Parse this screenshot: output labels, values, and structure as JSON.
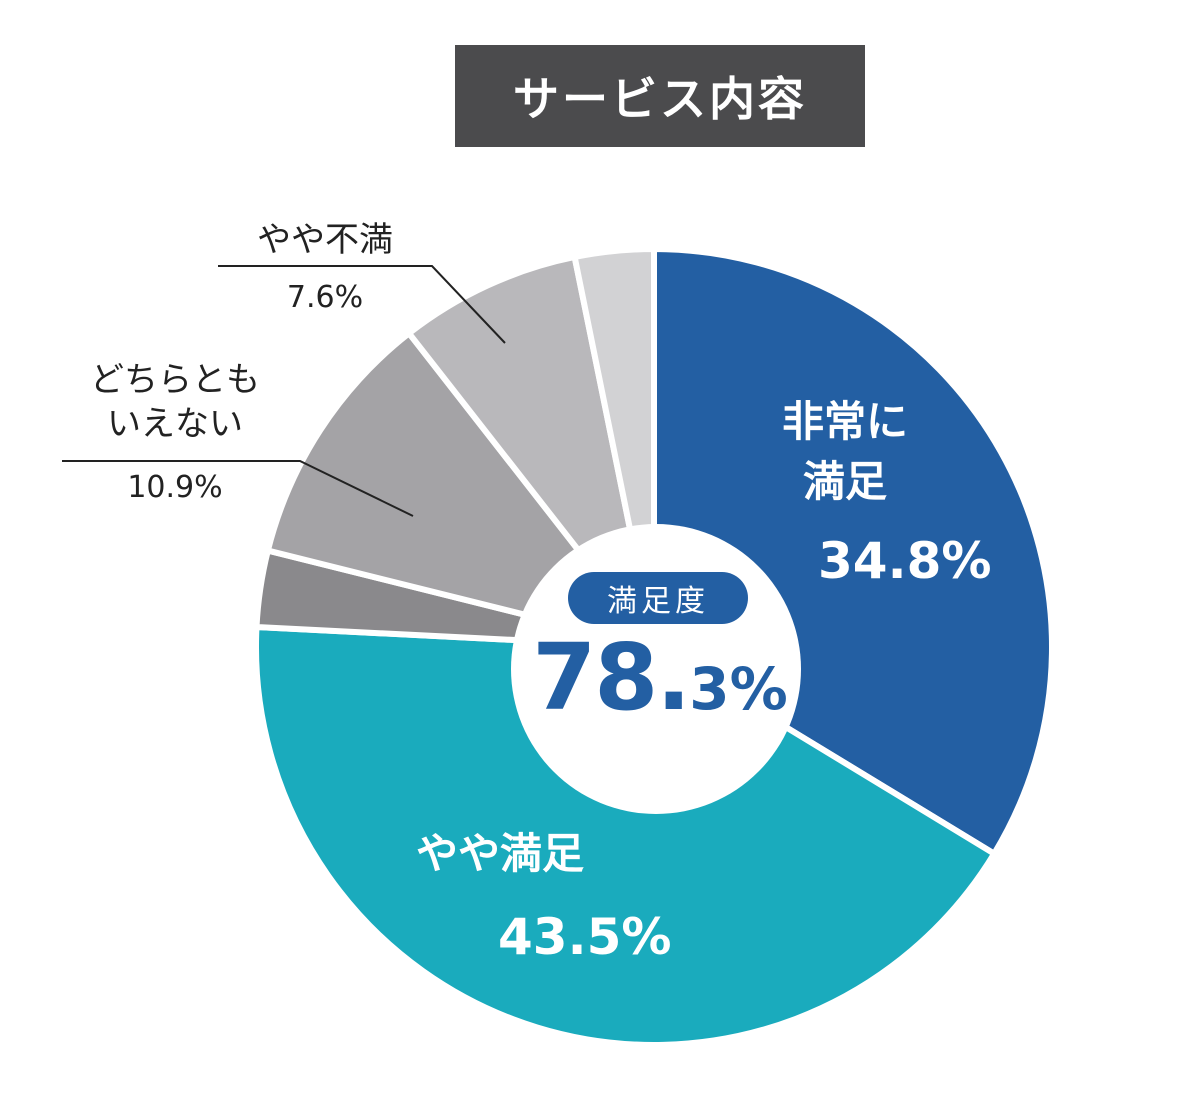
{
  "title": "サービス内容",
  "center": {
    "pill": "満足度",
    "value_main": "78.",
    "value_tail": "3%"
  },
  "chart_data": {
    "type": "pie",
    "title": "サービス内容",
    "donut": true,
    "slices": [
      {
        "label_lines": [
          "非常に",
          "満足"
        ],
        "value": 34.8,
        "display": "34.8%",
        "color": "#235fa3"
      },
      {
        "label_lines": [
          "やや満足"
        ],
        "value": 43.5,
        "display": "43.5%",
        "color": "#1aabbd"
      },
      {
        "label_lines": [],
        "value": 3.2,
        "display": "",
        "color": "#8a898c"
      },
      {
        "label_lines": [
          "どちらとも",
          "いえない"
        ],
        "value": 10.9,
        "display": "10.9%",
        "color": "#a4a3a6"
      },
      {
        "label_lines": [
          "やや不満"
        ],
        "value": 7.6,
        "display": "7.6%",
        "color": "#b9b8bb"
      },
      {
        "label_lines": [],
        "value": 3.3,
        "display": "",
        "color": "#d2d2d4"
      }
    ]
  }
}
